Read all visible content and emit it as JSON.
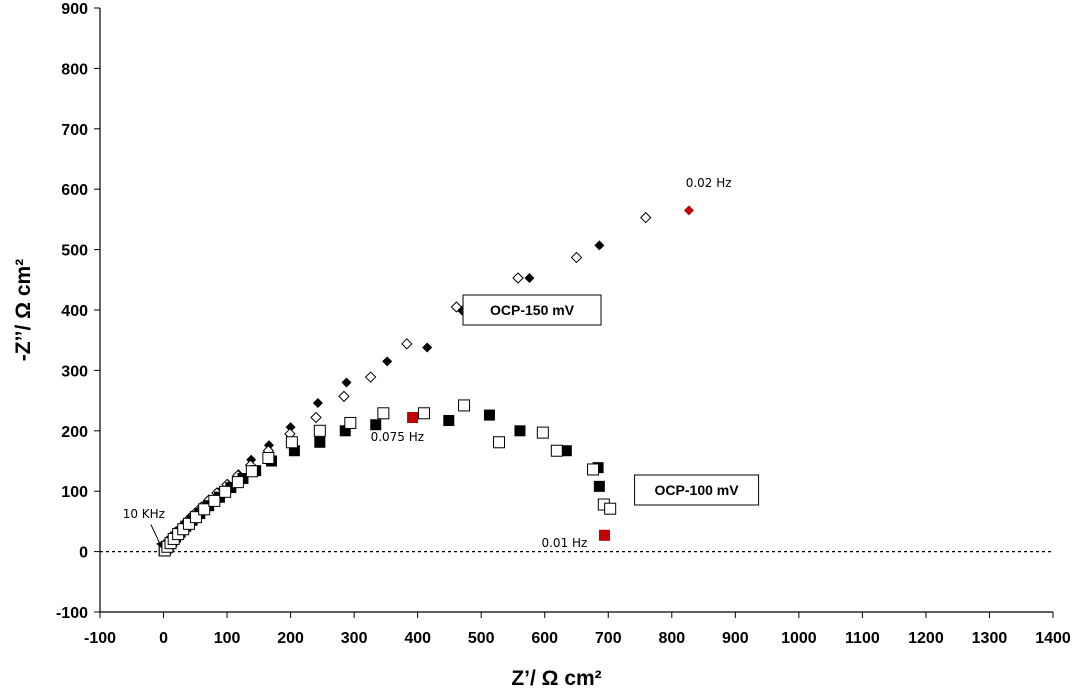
{
  "chart_data": {
    "type": "scatter",
    "title": "",
    "xlabel": "Z’/ Ω cm²",
    "ylabel": "-Z’’/ Ω cm²",
    "xlim": [
      -100,
      1400
    ],
    "ylim": [
      -100,
      900
    ],
    "xticks": [
      -100,
      0,
      100,
      200,
      300,
      400,
      500,
      600,
      700,
      800,
      900,
      1000,
      1100,
      1200,
      1300,
      1400
    ],
    "yticks": [
      -100,
      0,
      100,
      200,
      300,
      400,
      500,
      600,
      700,
      800,
      900
    ],
    "grid": false,
    "zero_line": "dashed",
    "colors": {
      "black": "#000000",
      "highlight": "#c00000"
    },
    "series": [
      {
        "name": "OCP-150 mV (filled)",
        "marker": "diamond-filled",
        "points": [
          [
            2,
            2
          ],
          [
            5,
            8
          ],
          [
            8,
            14
          ],
          [
            12,
            20
          ],
          [
            16,
            27
          ],
          [
            21,
            33
          ],
          [
            27,
            40
          ],
          [
            34,
            48
          ],
          [
            42,
            56
          ],
          [
            51,
            65
          ],
          [
            61,
            75
          ],
          [
            73,
            86
          ],
          [
            86,
            98
          ],
          [
            101,
            112
          ],
          [
            118,
            128
          ],
          [
            138,
            152
          ],
          [
            166,
            176
          ],
          [
            200,
            206
          ],
          [
            243,
            246
          ],
          [
            288,
            280
          ],
          [
            352,
            315
          ],
          [
            415,
            338
          ],
          [
            470,
            399
          ],
          [
            576,
            453
          ],
          [
            686,
            507
          ]
        ]
      },
      {
        "name": "OCP-150 mV (open)",
        "marker": "diamond-open",
        "points": [
          [
            3,
            3
          ],
          [
            7,
            10
          ],
          [
            11,
            17
          ],
          [
            15,
            24
          ],
          [
            20,
            31
          ],
          [
            26,
            38
          ],
          [
            33,
            46
          ],
          [
            41,
            55
          ],
          [
            50,
            64
          ],
          [
            60,
            74
          ],
          [
            71,
            85
          ],
          [
            84,
            97
          ],
          [
            100,
            111
          ],
          [
            117,
            126
          ],
          [
            137,
            143
          ],
          [
            165,
            167
          ],
          [
            199,
            195
          ],
          [
            240,
            222
          ],
          [
            284,
            257
          ],
          [
            326,
            289
          ],
          [
            383,
            344
          ],
          [
            461,
            405
          ],
          [
            558,
            453
          ],
          [
            650,
            487
          ],
          [
            759,
            553
          ]
        ]
      },
      {
        "name": "OCP-150 mV highlight",
        "marker": "diamond-red",
        "points": [
          [
            827,
            565
          ]
        ]
      },
      {
        "name": "OCP-100 mV (filled)",
        "marker": "square-filled",
        "points": [
          [
            1,
            1
          ],
          [
            4,
            5
          ],
          [
            8,
            11
          ],
          [
            13,
            17
          ],
          [
            19,
            24
          ],
          [
            26,
            32
          ],
          [
            35,
            42
          ],
          [
            45,
            52
          ],
          [
            57,
            63
          ],
          [
            71,
            76
          ],
          [
            88,
            90
          ],
          [
            106,
            106
          ],
          [
            125,
            121
          ],
          [
            145,
            134
          ],
          [
            170,
            150
          ],
          [
            206,
            167
          ],
          [
            246,
            181
          ],
          [
            286,
            200
          ],
          [
            334,
            210
          ],
          [
            449,
            217
          ],
          [
            513,
            226
          ],
          [
            561,
            200
          ],
          [
            634,
            167
          ],
          [
            684,
            139
          ],
          [
            686,
            108
          ]
        ]
      },
      {
        "name": "OCP-100 mV (open)",
        "marker": "square-open",
        "points": [
          [
            2,
            2
          ],
          [
            6,
            8
          ],
          [
            11,
            14
          ],
          [
            16,
            21
          ],
          [
            23,
            29
          ],
          [
            31,
            37
          ],
          [
            40,
            46
          ],
          [
            51,
            57
          ],
          [
            64,
            70
          ],
          [
            80,
            84
          ],
          [
            97,
            99
          ],
          [
            117,
            115
          ],
          [
            139,
            133
          ],
          [
            165,
            155
          ],
          [
            202,
            181
          ],
          [
            246,
            200
          ],
          [
            294,
            213
          ],
          [
            346,
            229
          ],
          [
            410,
            229
          ],
          [
            473,
            242
          ],
          [
            528,
            181
          ],
          [
            597,
            197
          ],
          [
            619,
            167
          ],
          [
            676,
            136
          ],
          [
            693,
            78
          ],
          [
            703,
            71
          ]
        ]
      },
      {
        "name": "OCP-100 mV highlight",
        "marker": "square-red",
        "points": [
          [
            392,
            222
          ],
          [
            694,
            27
          ]
        ]
      }
    ],
    "annotations": {
      "hz_002": {
        "text": "0.02 Hz",
        "x": 858,
        "y": 604
      },
      "hz_0075": {
        "text": "0.075 Hz",
        "x": 368,
        "y": 183
      },
      "hz_001": {
        "text": "0.01 Hz",
        "x": 631,
        "y": 8
      },
      "khz_10": {
        "text": "10 KHz",
        "x": -31,
        "y": 56
      }
    },
    "legend_boxes": {
      "ocp150": {
        "text": "OCP-150 mV",
        "x": 580,
        "y": 400
      },
      "ocp100": {
        "text": "OCP-100 mV",
        "x": 839,
        "y": 102
      }
    }
  }
}
